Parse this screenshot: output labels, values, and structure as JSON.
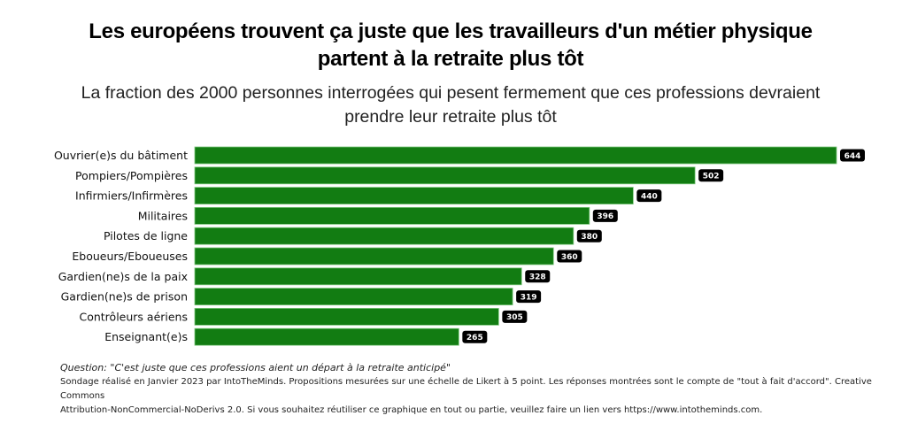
{
  "chart_data": {
    "type": "bar",
    "orientation": "horizontal",
    "title": "Les européens trouvent ça juste que les travailleurs d'un métier physique partent à la retraite plus tôt",
    "subtitle": "La fraction des 2000 personnes interrogées qui pesent fermement que ces professions devraient prendre leur retraite plus tôt",
    "categories": [
      "Ouvrier(e)s du bâtiment",
      "Pompiers/Pompières",
      "Infirmiers/Infirmères",
      "Militaires",
      "Pilotes de ligne",
      "Eboueurs/Eboueuses",
      "Gardien(ne)s de la paix",
      "Gardien(ne)s de prison",
      "Contrôleurs aériens",
      "Enseignant(e)s"
    ],
    "values": [
      644,
      502,
      440,
      396,
      380,
      360,
      328,
      319,
      305,
      265
    ],
    "xlabel": "",
    "ylabel": "",
    "xlim": [
      0,
      644
    ],
    "grid": false,
    "legend": "none",
    "bar_color": "#127c12",
    "label_bg_color": "#000000"
  },
  "header": {
    "title_line1": "Les européens trouvent ça juste que les travailleurs d'un métier physique",
    "title_line2": "partent à la retraite plus tôt",
    "subtitle_line1": "La fraction des 2000 personnes interrogées qui pesent fermement que ces professions devraient",
    "subtitle_line2": "prendre leur retraite plus tôt"
  },
  "footer": {
    "question": "Question: \"C'est juste que ces professions aient un départ à la retraite anticipé\"",
    "line1": "Sondage réalisé en Janvier 2023 par IntoTheMinds. Propositions mesurées sur une échelle de Likert à 5 point. Les réponses montrées sont le compte de \"tout à fait d'accord\". Creative Commons",
    "line2": "Attribution-NonCommercial-NoDerivs 2.0. Si vous souhaitez réutiliser ce graphique en tout ou partie, veuillez faire un lien vers https://www.intotheminds.com."
  }
}
